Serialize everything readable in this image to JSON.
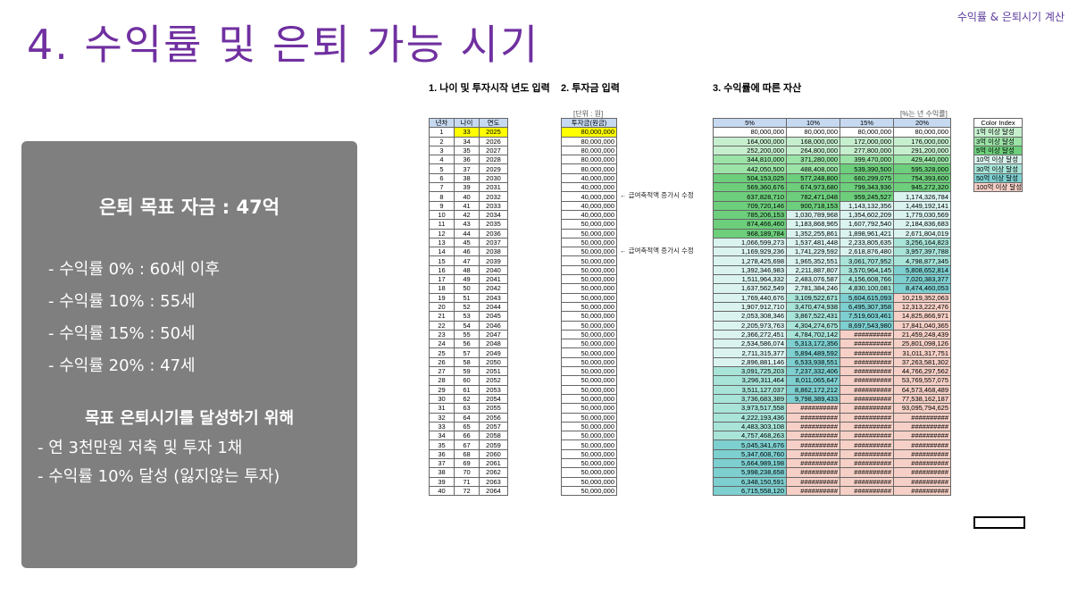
{
  "header_tag": "수익률 & 은퇴시기 계산",
  "title": "4. 수익률 및 은퇴 가능 시기",
  "panel": {
    "goal": "은퇴 목표 자금 : 47억",
    "rates": [
      "- 수익률   0% : 60세 이후",
      "- 수익률 10% : 55세",
      "- 수익률 15% : 50세",
      "- 수익률 20% : 47세"
    ],
    "strategy_title": "목표 은퇴시기를 달성하기 위해",
    "strategy": [
      "- 연 3천만원 저축 및 투자 1채",
      "- 수익률 10% 달성 (잃지않는 투자)"
    ]
  },
  "sheet": {
    "section1": "1. 나이 및 투자시작 년도 입력",
    "section2": "2. 투자금 입력",
    "section3": "3. 수익률에 따른 자산",
    "unit_won": "[단위 : 원]",
    "unit_rate": "[%는 년 수익률]",
    "note_1": "← 급여축적액 증가시 수정",
    "note_2": "← 급여축적액 증가시 수정",
    "age_headers": [
      "년차",
      "나이",
      "연도"
    ],
    "invest_header": "투자금(원금)",
    "asset_headers": [
      "5%",
      "10%",
      "15%",
      "20%"
    ],
    "color_index_header": "Color Index",
    "color_index": [
      {
        "label": "1억 이상 달성",
        "color": "#c6efce"
      },
      {
        "label": "3억 이상 달성",
        "color": "#9be3a6"
      },
      {
        "label": "5억 이상 달성",
        "color": "#6dcf7c"
      },
      {
        "label": "10억 이상 달성",
        "color": "#daf3ee"
      },
      {
        "label": "30억 이상 달성",
        "color": "#a8e4d8"
      },
      {
        "label": "50억 이상 달성",
        "color": "#7dcfd0"
      },
      {
        "label": "100억 이상 달성",
        "color": "#f6d0c6"
      }
    ],
    "rows": [
      [
        "1",
        "33",
        "2025",
        "80,000,000",
        "80,000,000",
        "80,000,000",
        "80,000,000",
        "80,000,000"
      ],
      [
        "2",
        "34",
        "2026",
        "80,000,000",
        "164,000,000",
        "168,000,000",
        "172,000,000",
        "176,000,000"
      ],
      [
        "3",
        "35",
        "2027",
        "80,000,000",
        "252,200,000",
        "264,800,000",
        "277,800,000",
        "291,200,000"
      ],
      [
        "4",
        "36",
        "2028",
        "80,000,000",
        "344,810,000",
        "371,280,000",
        "399,470,000",
        "429,440,000"
      ],
      [
        "5",
        "37",
        "2029",
        "80,000,000",
        "442,050,500",
        "488,408,000",
        "539,390,500",
        "595,328,000"
      ],
      [
        "6",
        "38",
        "2030",
        "40,000,000",
        "504,153,025",
        "577,248,800",
        "660,299,075",
        "754,393,600"
      ],
      [
        "7",
        "39",
        "2031",
        "40,000,000",
        "569,360,676",
        "674,973,680",
        "799,343,936",
        "945,272,320"
      ],
      [
        "8",
        "40",
        "2032",
        "40,000,000",
        "637,828,710",
        "782,471,048",
        "959,245,527",
        "1,174,326,784"
      ],
      [
        "9",
        "41",
        "2033",
        "40,000,000",
        "709,720,146",
        "900,718,153",
        "1,143,132,356",
        "1,449,192,141"
      ],
      [
        "10",
        "42",
        "2034",
        "40,000,000",
        "785,206,153",
        "1,030,789,968",
        "1,354,602,209",
        "1,779,030,569"
      ],
      [
        "11",
        "43",
        "2035",
        "50,000,000",
        "874,466,460",
        "1,183,868,965",
        "1,607,792,540",
        "2,184,836,683"
      ],
      [
        "12",
        "44",
        "2036",
        "50,000,000",
        "968,189,784",
        "1,352,255,861",
        "1,898,961,421",
        "2,671,804,019"
      ],
      [
        "13",
        "45",
        "2037",
        "50,000,000",
        "1,066,599,273",
        "1,537,481,448",
        "2,233,805,635",
        "3,256,164,823"
      ],
      [
        "14",
        "46",
        "2038",
        "50,000,000",
        "1,169,929,236",
        "1,741,229,592",
        "2,618,876,480",
        "3,957,397,788"
      ],
      [
        "15",
        "47",
        "2039",
        "50,000,000",
        "1,278,425,698",
        "1,965,352,551",
        "3,061,707,952",
        "4,798,877,345"
      ],
      [
        "16",
        "48",
        "2040",
        "50,000,000",
        "1,392,346,983",
        "2,211,887,807",
        "3,570,964,145",
        "5,808,652,814"
      ],
      [
        "17",
        "49",
        "2041",
        "50,000,000",
        "1,511,964,332",
        "2,483,076,587",
        "4,156,608,766",
        "7,020,383,377"
      ],
      [
        "18",
        "50",
        "2042",
        "50,000,000",
        "1,637,562,549",
        "2,781,384,246",
        "4,830,100,081",
        "8,474,460,053"
      ],
      [
        "19",
        "51",
        "2043",
        "50,000,000",
        "1,769,440,676",
        "3,109,522,671",
        "5,604,615,093",
        "10,219,352,063"
      ],
      [
        "20",
        "52",
        "2044",
        "50,000,000",
        "1,907,912,710",
        "3,470,474,938",
        "6,495,307,358",
        "12,313,222,476"
      ],
      [
        "21",
        "53",
        "2045",
        "50,000,000",
        "2,053,308,346",
        "3,867,522,431",
        "7,519,603,461",
        "14,825,866,971"
      ],
      [
        "22",
        "54",
        "2046",
        "50,000,000",
        "2,205,973,763",
        "4,304,274,675",
        "8,697,543,980",
        "17,841,040,365"
      ],
      [
        "23",
        "55",
        "2047",
        "50,000,000",
        "2,366,272,451",
        "4,784,702,142",
        "##########",
        "21,459,248,439"
      ],
      [
        "24",
        "56",
        "2048",
        "50,000,000",
        "2,534,586,074",
        "5,313,172,356",
        "##########",
        "25,801,098,126"
      ],
      [
        "25",
        "57",
        "2049",
        "50,000,000",
        "2,711,315,377",
        "5,894,489,592",
        "##########",
        "31,011,317,751"
      ],
      [
        "26",
        "58",
        "2050",
        "50,000,000",
        "2,896,881,146",
        "6,533,938,551",
        "##########",
        "37,263,581,302"
      ],
      [
        "27",
        "59",
        "2051",
        "50,000,000",
        "3,091,725,203",
        "7,237,332,406",
        "##########",
        "44,766,297,562"
      ],
      [
        "28",
        "60",
        "2052",
        "50,000,000",
        "3,296,311,464",
        "8,011,065,647",
        "##########",
        "53,769,557,075"
      ],
      [
        "29",
        "61",
        "2053",
        "50,000,000",
        "3,511,127,037",
        "8,862,172,212",
        "##########",
        "64,573,468,489"
      ],
      [
        "30",
        "62",
        "2054",
        "50,000,000",
        "3,736,683,389",
        "9,798,389,433",
        "##########",
        "77,538,162,187"
      ],
      [
        "31",
        "63",
        "2055",
        "50,000,000",
        "3,973,517,558",
        "##########",
        "##########",
        "93,095,794,625"
      ],
      [
        "32",
        "64",
        "2056",
        "50,000,000",
        "4,222,193,436",
        "##########",
        "##########",
        "##########"
      ],
      [
        "33",
        "65",
        "2057",
        "50,000,000",
        "4,483,303,108",
        "##########",
        "##########",
        "##########"
      ],
      [
        "34",
        "66",
        "2058",
        "50,000,000",
        "4,757,468,263",
        "##########",
        "##########",
        "##########"
      ],
      [
        "35",
        "67",
        "2059",
        "50,000,000",
        "5,045,341,676",
        "##########",
        "##########",
        "##########"
      ],
      [
        "36",
        "68",
        "2060",
        "50,000,000",
        "5,347,608,760",
        "##########",
        "##########",
        "##########"
      ],
      [
        "37",
        "69",
        "2061",
        "50,000,000",
        "5,664,989,198",
        "##########",
        "##########",
        "##########"
      ],
      [
        "38",
        "70",
        "2062",
        "50,000,000",
        "5,998,238,658",
        "##########",
        "##########",
        "##########"
      ],
      [
        "39",
        "71",
        "2063",
        "50,000,000",
        "6,348,150,591",
        "##########",
        "##########",
        "##########"
      ],
      [
        "40",
        "72",
        "2064",
        "50,000,000",
        "6,715,558,120",
        "##########",
        "##########",
        "##########"
      ]
    ],
    "tier_colors": {
      "under1": "#ffffff",
      "1": "#c6efce",
      "3": "#9be3a6",
      "5": "#6dcf7c",
      "10": "#daf3ee",
      "30": "#a8e4d8",
      "50": "#7dcfd0",
      "100": "#f6d0c6",
      "first_row_highlight": "#ffff00",
      "header_blue": "#c6d9f1"
    }
  }
}
